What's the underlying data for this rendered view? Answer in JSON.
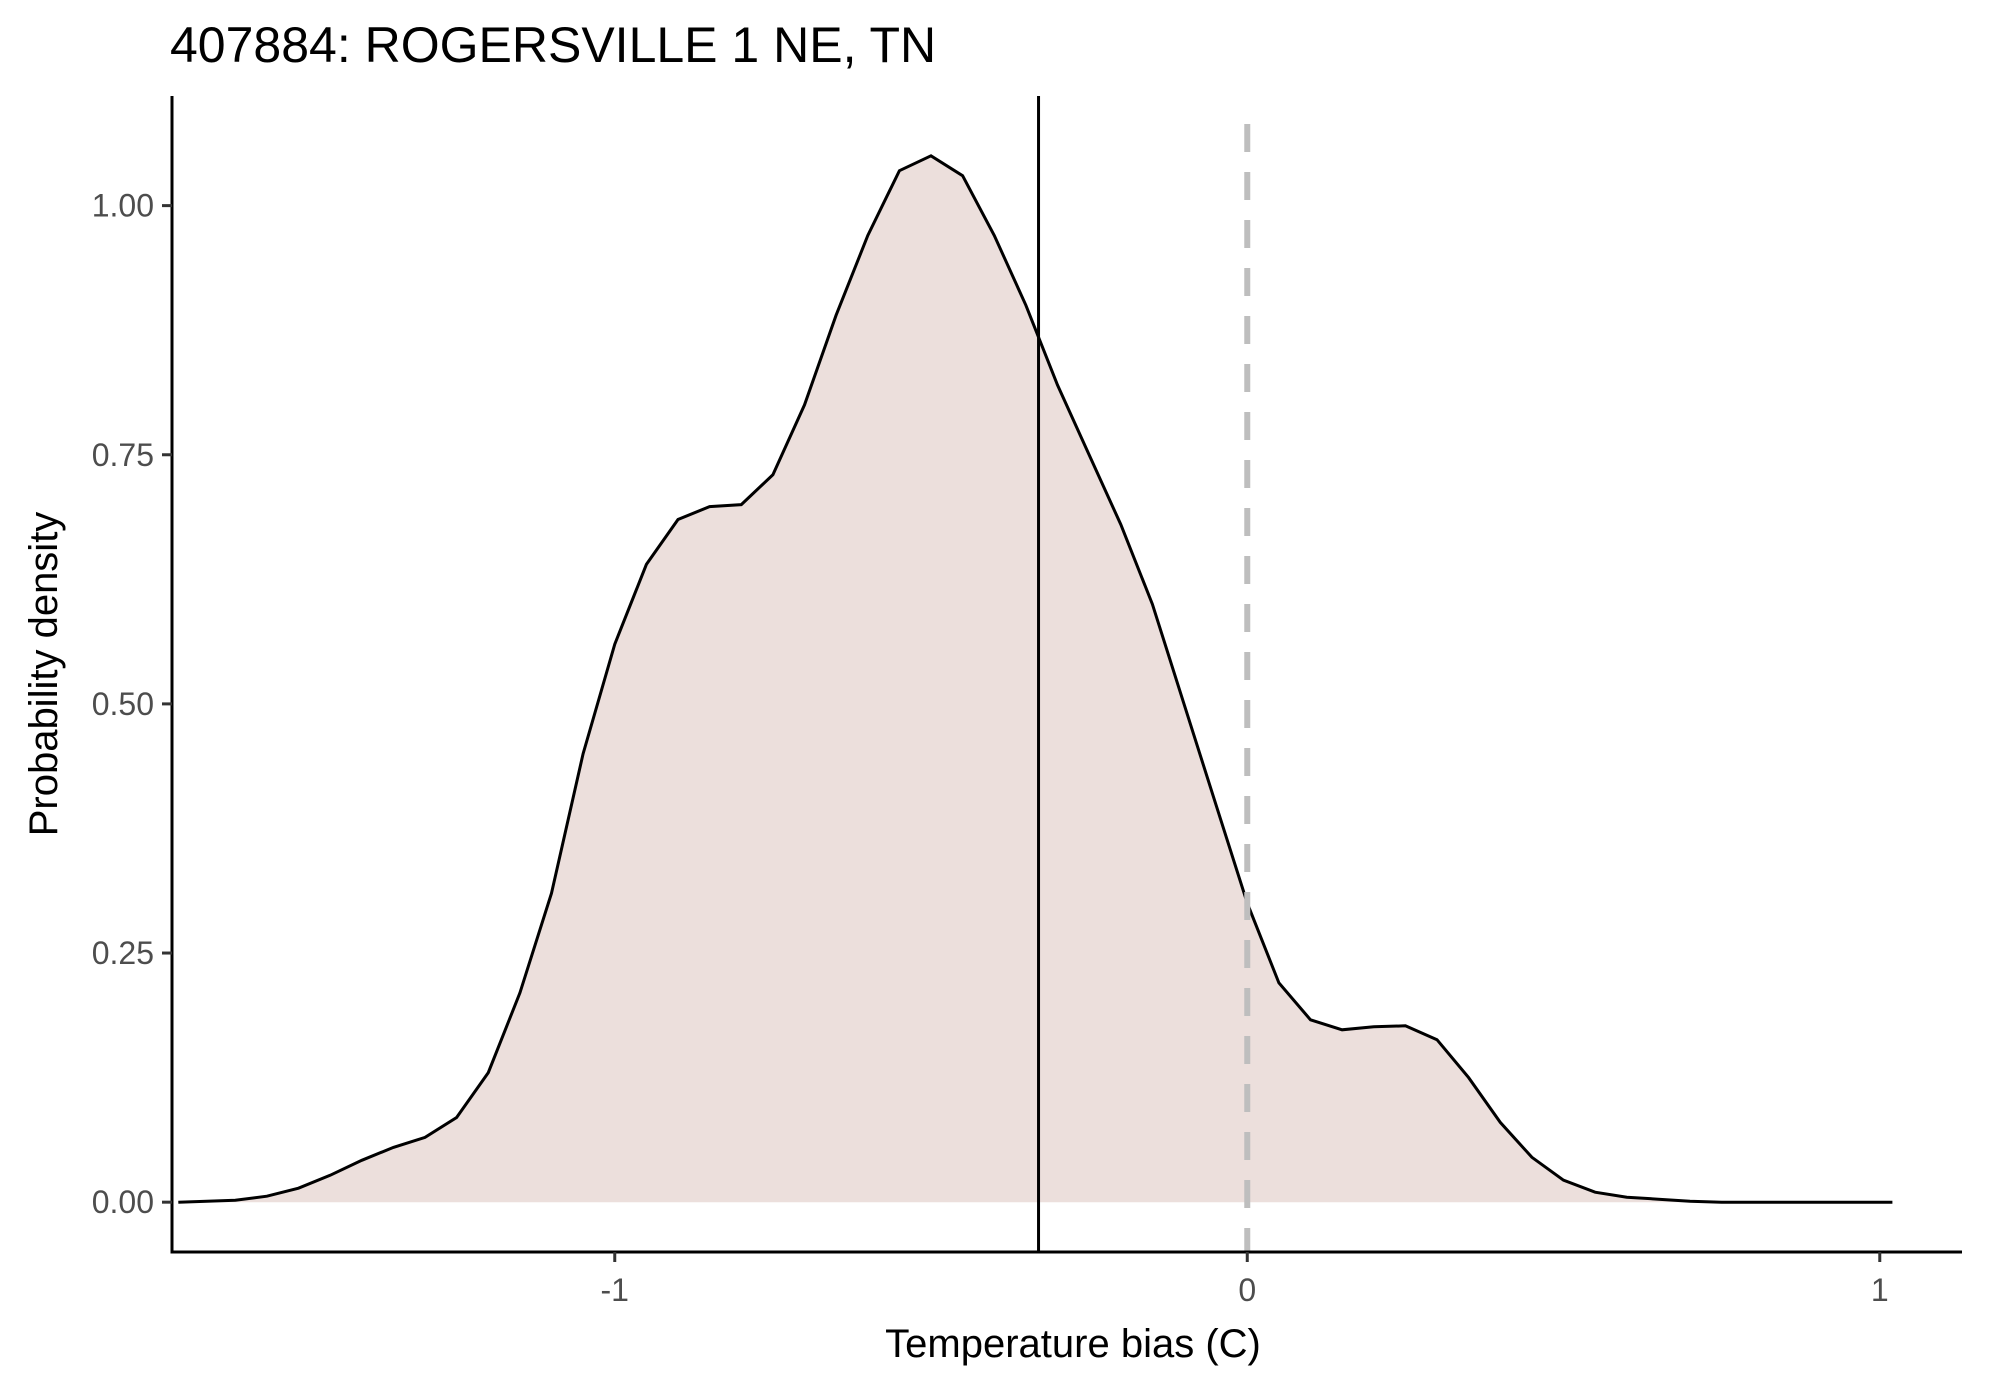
{
  "chart_data": {
    "type": "area",
    "title": "407884: ROGERSVILLE 1 NE, TN",
    "xlabel": "Temperature bias (C)",
    "ylabel": "Probability density",
    "xlim": [
      -1.7,
      1.13
    ],
    "ylim": [
      -0.05,
      1.11
    ],
    "x_ticks": [
      -1,
      0,
      1
    ],
    "x_tick_labels": [
      "-1",
      "0",
      "1"
    ],
    "y_ticks": [
      0,
      0.25,
      0.5,
      0.75,
      1
    ],
    "y_tick_labels": [
      "0.00",
      "0.25",
      "0.50",
      "0.75",
      "1.00"
    ],
    "grid": false,
    "fill_color": "#ecdfdc",
    "line_color": "#000000",
    "reference_lines": [
      {
        "x": -0.33,
        "style": "solid",
        "color": "#000000"
      },
      {
        "x": 0,
        "style": "dashed",
        "color": "#bebebe"
      }
    ],
    "series": [
      {
        "x": [
          -1.69,
          -1.6,
          -1.55,
          -1.5,
          -1.45,
          -1.4,
          -1.35,
          -1.3,
          -1.25,
          -1.2,
          -1.15,
          -1.1,
          -1.05,
          -1.0,
          -0.95,
          -0.9,
          -0.85,
          -0.8,
          -0.75,
          -0.7,
          -0.65,
          -0.6,
          -0.55,
          -0.5,
          -0.45,
          -0.4,
          -0.35,
          -0.3,
          -0.25,
          -0.2,
          -0.15,
          -0.1,
          -0.05,
          0.0,
          0.05,
          0.1,
          0.15,
          0.2,
          0.25,
          0.3,
          0.35,
          0.4,
          0.45,
          0.5,
          0.55,
          0.6,
          0.65,
          0.7,
          0.75,
          0.8,
          0.85,
          0.9,
          0.95,
          1.0,
          1.02
        ],
        "y": [
          0.0,
          0.002,
          0.006,
          0.014,
          0.027,
          0.042,
          0.055,
          0.065,
          0.085,
          0.13,
          0.21,
          0.31,
          0.45,
          0.56,
          0.64,
          0.685,
          0.698,
          0.7,
          0.73,
          0.8,
          0.89,
          0.97,
          1.035,
          1.05,
          1.03,
          0.97,
          0.9,
          0.82,
          0.75,
          0.68,
          0.6,
          0.5,
          0.4,
          0.3,
          0.22,
          0.183,
          0.173,
          0.176,
          0.177,
          0.163,
          0.125,
          0.08,
          0.045,
          0.022,
          0.01,
          0.005,
          0.003,
          0.001,
          0.0,
          0.0,
          0.0,
          0.0,
          0.0,
          0.0,
          0.0
        ]
      }
    ]
  }
}
